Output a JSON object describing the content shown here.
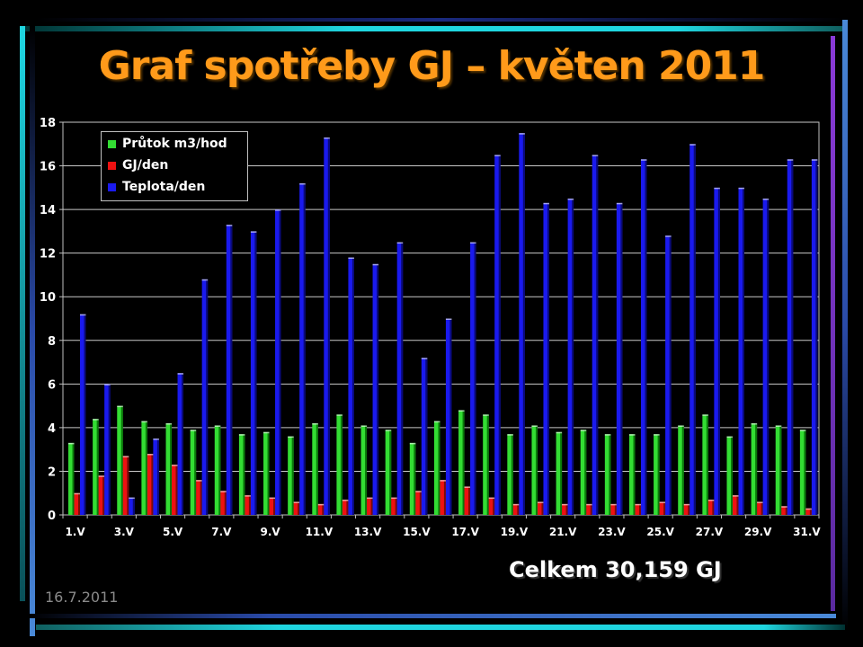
{
  "slide": {
    "title": "Graf spotřeby GJ – květen 2011",
    "total": "Celkem 30,159 GJ",
    "date": "16.7.2011"
  },
  "colors": {
    "title": "#ff9a1a",
    "flow": "#33dd33",
    "gj": "#ee1111",
    "temp": "#1a1aee",
    "background": "#000000"
  },
  "chart_data": {
    "type": "bar",
    "title": "",
    "xlabel": "",
    "ylabel": "",
    "ylim": [
      0,
      18
    ],
    "yticks": [
      0,
      2,
      4,
      6,
      8,
      10,
      12,
      14,
      16,
      18
    ],
    "grid": true,
    "legend_position": "top-left",
    "categories": [
      "1.V",
      "2.V",
      "3.V",
      "4.V",
      "5.V",
      "6.V",
      "7.V",
      "8.V",
      "9.V",
      "10.V",
      "11.V",
      "12.V",
      "13.V",
      "14.V",
      "15.V",
      "16.V",
      "17.V",
      "18.V",
      "19.V",
      "20.V",
      "21.V",
      "22.V",
      "23.V",
      "24.V",
      "25.V",
      "26.V",
      "27.V",
      "28.V",
      "29.V",
      "30.V",
      "31.V"
    ],
    "xtick_labels": [
      "1.V",
      "3.V",
      "5.V",
      "7.V",
      "9.V",
      "11.V",
      "13.V",
      "15.V",
      "17.V",
      "19.V",
      "21.V",
      "23.V",
      "25.V",
      "27.V",
      "29.V",
      "31.V"
    ],
    "series": [
      {
        "name": "Průtok m3/hod",
        "values": [
          3.3,
          4.4,
          5.0,
          4.3,
          4.2,
          3.9,
          4.1,
          3.7,
          3.8,
          3.6,
          4.2,
          4.6,
          4.1,
          3.9,
          3.3,
          4.3,
          4.8,
          4.6,
          3.7,
          4.1,
          3.8,
          3.9,
          3.7,
          3.7,
          3.7,
          4.1,
          4.6,
          3.6,
          4.2,
          4.1,
          3.9
        ]
      },
      {
        "name": "GJ/den",
        "values": [
          1.0,
          1.8,
          2.7,
          2.8,
          2.3,
          1.6,
          1.1,
          0.9,
          0.8,
          0.6,
          0.5,
          0.7,
          0.8,
          0.8,
          1.1,
          1.6,
          1.3,
          0.8,
          0.5,
          0.6,
          0.5,
          0.5,
          0.5,
          0.5,
          0.6,
          0.5,
          0.7,
          0.9,
          0.6,
          0.4,
          0.3
        ]
      },
      {
        "name": "Teplota/den",
        "values": [
          9.2,
          6.0,
          0.8,
          3.5,
          6.5,
          10.8,
          13.3,
          13.0,
          14.0,
          15.2,
          17.3,
          11.8,
          11.5,
          12.5,
          7.2,
          9.0,
          12.5,
          16.5,
          17.5,
          14.3,
          14.5,
          16.5,
          14.3,
          16.3,
          12.8,
          17.0,
          15.0,
          15.0,
          14.5,
          16.3,
          16.3
        ]
      }
    ]
  }
}
